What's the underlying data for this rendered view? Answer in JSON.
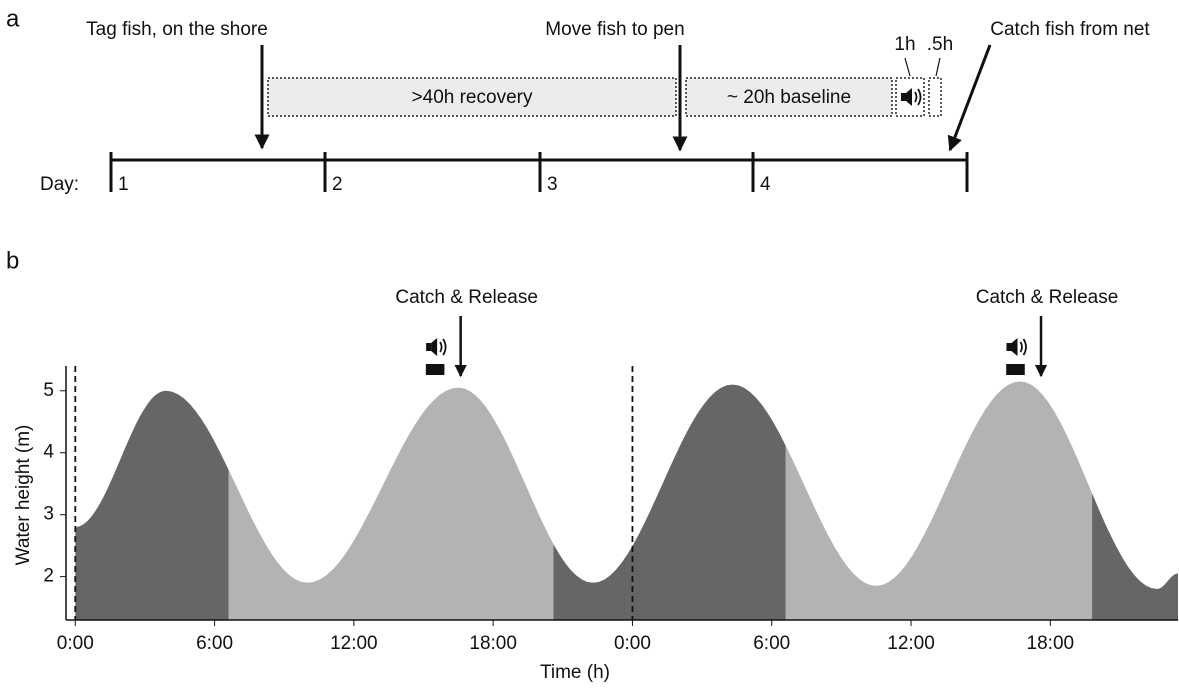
{
  "panel_a": {
    "label": "a",
    "events": [
      "Tag fish, on the shore",
      "Move fish to pen",
      "Catch fish from net"
    ],
    "phases": [
      ">40h recovery",
      "~ 20h baseline"
    ],
    "short_phases": [
      "1h",
      ".5h"
    ],
    "day_label": "Day:",
    "days": [
      "1",
      "2",
      "3",
      "4"
    ]
  },
  "chart_data": {
    "type": "area",
    "label": "b",
    "x_label": "Time (h)",
    "y_label": "Water height (m)",
    "x": [
      0,
      3.9,
      10.0,
      16.5,
      22.3,
      28.3,
      34.5,
      40.7,
      46.6,
      47.5
    ],
    "values": [
      2.8,
      5.0,
      1.9,
      5.05,
      1.9,
      5.1,
      1.85,
      5.15,
      1.8,
      2.05
    ],
    "regions": [
      {
        "x": [
          0,
          6.6
        ],
        "color": "#666666"
      },
      {
        "x": [
          6.6,
          20.6
        ],
        "color": "#b3b3b3"
      },
      {
        "x": [
          20.6,
          30.6
        ],
        "color": "#666666"
      },
      {
        "x": [
          30.6,
          43.8
        ],
        "color": "#b3b3b3"
      },
      {
        "x": [
          43.8,
          47.5
        ],
        "color": "#666666"
      }
    ],
    "day_boundaries": [
      0,
      24
    ],
    "playback": [
      {
        "x": [
          15.1,
          15.9
        ]
      },
      {
        "x": [
          40.1,
          40.9
        ]
      }
    ],
    "annotations": [
      {
        "text": "Catch & Release",
        "x": 16.6
      },
      {
        "text": "Catch & Release",
        "x": 41.6
      }
    ],
    "xlim": [
      -0.4,
      47.5
    ],
    "ylim": [
      1.3,
      5.4
    ],
    "xticks": [
      {
        "value": 0,
        "label": "0:00"
      },
      {
        "value": 6,
        "label": "6:00"
      },
      {
        "value": 12,
        "label": "12:00"
      },
      {
        "value": 18,
        "label": "18:00"
      },
      {
        "value": 24,
        "label": "0:00"
      },
      {
        "value": 30,
        "label": "6:00"
      },
      {
        "value": 36,
        "label": "12:00"
      },
      {
        "value": 42,
        "label": "18:00"
      }
    ],
    "yticks": [
      2,
      3,
      4,
      5
    ]
  }
}
